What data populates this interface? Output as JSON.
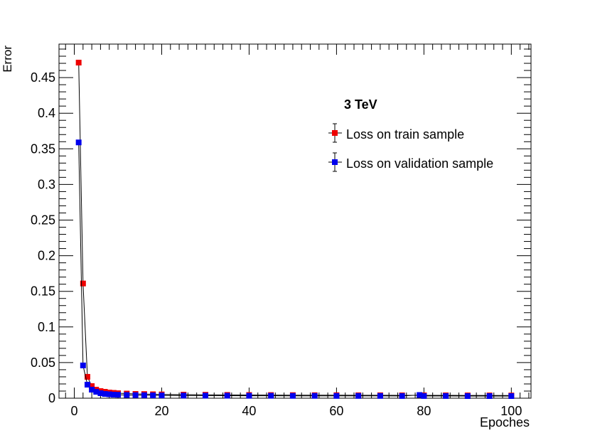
{
  "chart_data": {
    "type": "scatter",
    "title": "3 TeV",
    "xlabel": "Epoches",
    "ylabel": "Error",
    "xlim": [
      -3.5,
      104.5
    ],
    "ylim": [
      0,
      0.497
    ],
    "x_ticks": [
      0,
      20,
      40,
      60,
      80,
      100
    ],
    "x_tick_labels": [
      "0",
      "20",
      "40",
      "60",
      "80",
      "100"
    ],
    "y_ticks": [
      0,
      0.05,
      0.1,
      0.15,
      0.2,
      0.25,
      0.3,
      0.35,
      0.4,
      0.45
    ],
    "y_tick_labels": [
      "0",
      "0.05",
      "0.1",
      "0.15",
      "0.2",
      "0.25",
      "0.3",
      "0.35",
      "0.4",
      "0.45"
    ],
    "grid": false,
    "legend_position": "top-right",
    "series": [
      {
        "name": "Loss on train sample",
        "color": "#ee0000",
        "marker": "square",
        "x": [
          1,
          2,
          3,
          4,
          5,
          6,
          7,
          8,
          9,
          10,
          12,
          14,
          16,
          18,
          20,
          25,
          30,
          35,
          40,
          45,
          50,
          55,
          60,
          65,
          70,
          75,
          80,
          85,
          90,
          95,
          100
        ],
        "y": [
          0.471,
          0.161,
          0.03,
          0.017,
          0.012,
          0.01,
          0.009,
          0.008,
          0.0075,
          0.007,
          0.0065,
          0.006,
          0.0058,
          0.0055,
          0.0053,
          0.005,
          0.0048,
          0.0046,
          0.0045,
          0.0044,
          0.0043,
          0.0042,
          0.0042,
          0.0041,
          0.0041,
          0.004,
          0.004,
          0.004,
          0.0039,
          0.0039,
          0.0038
        ]
      },
      {
        "name": "Loss on validation sample",
        "color": "#0000ee",
        "marker": "square",
        "x": [
          1,
          2,
          3,
          4,
          5,
          6,
          7,
          8,
          9,
          10,
          12,
          14,
          16,
          18,
          20,
          25,
          30,
          35,
          40,
          45,
          50,
          55,
          60,
          65,
          70,
          75,
          79,
          80,
          85,
          90,
          95,
          100
        ],
        "y": [
          0.359,
          0.046,
          0.019,
          0.012,
          0.009,
          0.007,
          0.006,
          0.0055,
          0.005,
          0.0048,
          0.0045,
          0.0043,
          0.0042,
          0.004,
          0.0039,
          0.0037,
          0.0036,
          0.0035,
          0.0034,
          0.0034,
          0.0033,
          0.0033,
          0.0032,
          0.0032,
          0.0032,
          0.0031,
          0.0045,
          0.0031,
          0.0031,
          0.003,
          0.003,
          0.003
        ]
      }
    ]
  }
}
